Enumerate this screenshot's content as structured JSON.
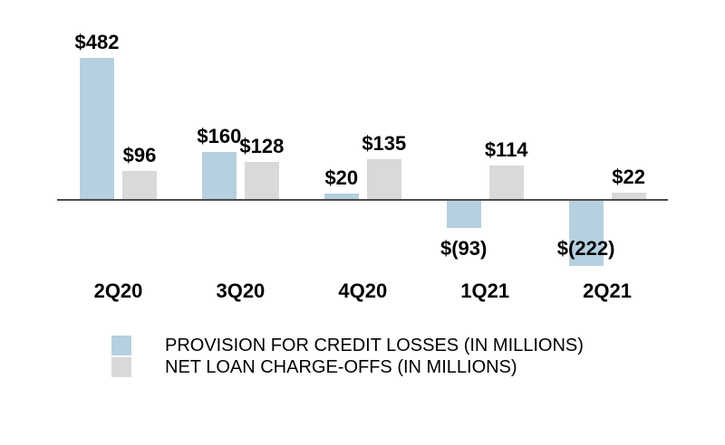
{
  "chart_data": {
    "type": "bar",
    "title": "",
    "xlabel": "",
    "ylabel": "",
    "categories": [
      "2Q20",
      "3Q20",
      "4Q20",
      "1Q21",
      "2Q21"
    ],
    "series": [
      {
        "name": "PROVISION FOR CREDIT LOSSES (IN MILLIONS)",
        "color": "#b6d0df",
        "values": [
          482,
          160,
          20,
          -93,
          -222
        ],
        "data_labels": [
          "$482",
          "$160",
          "$20",
          "$(93)",
          "$(222)"
        ]
      },
      {
        "name": "NET LOAN CHARGE-OFFS (IN MILLIONS)",
        "color": "#d9d9d9",
        "values": [
          96,
          128,
          135,
          114,
          22
        ],
        "data_labels": [
          "$96",
          "$128",
          "$135",
          "$114",
          "$22"
        ]
      }
    ],
    "baseline": 0,
    "ylim": [
      -250,
      500
    ],
    "grid": false,
    "axis_labels_shown": false,
    "legend_position": "bottom-left"
  },
  "colors": {
    "provision_blue": "#b6d0df",
    "charge_offs_gray": "#d9d9d9",
    "axis_line": "#4d4d4d",
    "label_text": "#000000",
    "background": "#ffffff"
  }
}
